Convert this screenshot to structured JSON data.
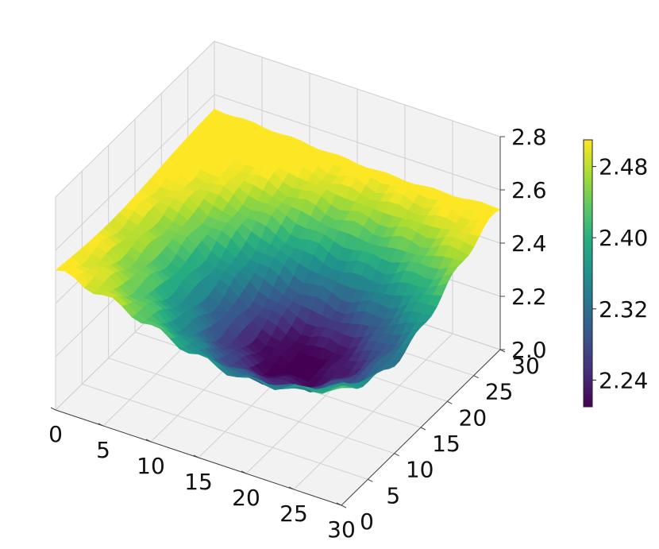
{
  "chart_data": {
    "type": "surface3d",
    "title": "",
    "xlabel": "",
    "ylabel": "",
    "zlabel": "",
    "x_ticks": [
      "0",
      "5",
      "10",
      "15",
      "20",
      "25",
      "30"
    ],
    "y_ticks": [
      "0",
      "5",
      "10",
      "15",
      "20",
      "25",
      "30"
    ],
    "z_ticks": [
      "2.0",
      "2.2",
      "2.4",
      "2.6",
      "2.8"
    ],
    "xlim": [
      0,
      30
    ],
    "ylim": [
      0,
      30
    ],
    "zlim": [
      2.0,
      2.8
    ],
    "grid": true,
    "colormap": "viridis",
    "colorbar": {
      "range": [
        2.21,
        2.51
      ],
      "ticks": [
        "2.24",
        "2.32",
        "2.40",
        "2.48"
      ]
    },
    "surface_model": {
      "description_free": true,
      "grid_size": 31,
      "base": 2.55,
      "min_point": [
        20,
        10
      ],
      "min_value": 2.2
    }
  }
}
